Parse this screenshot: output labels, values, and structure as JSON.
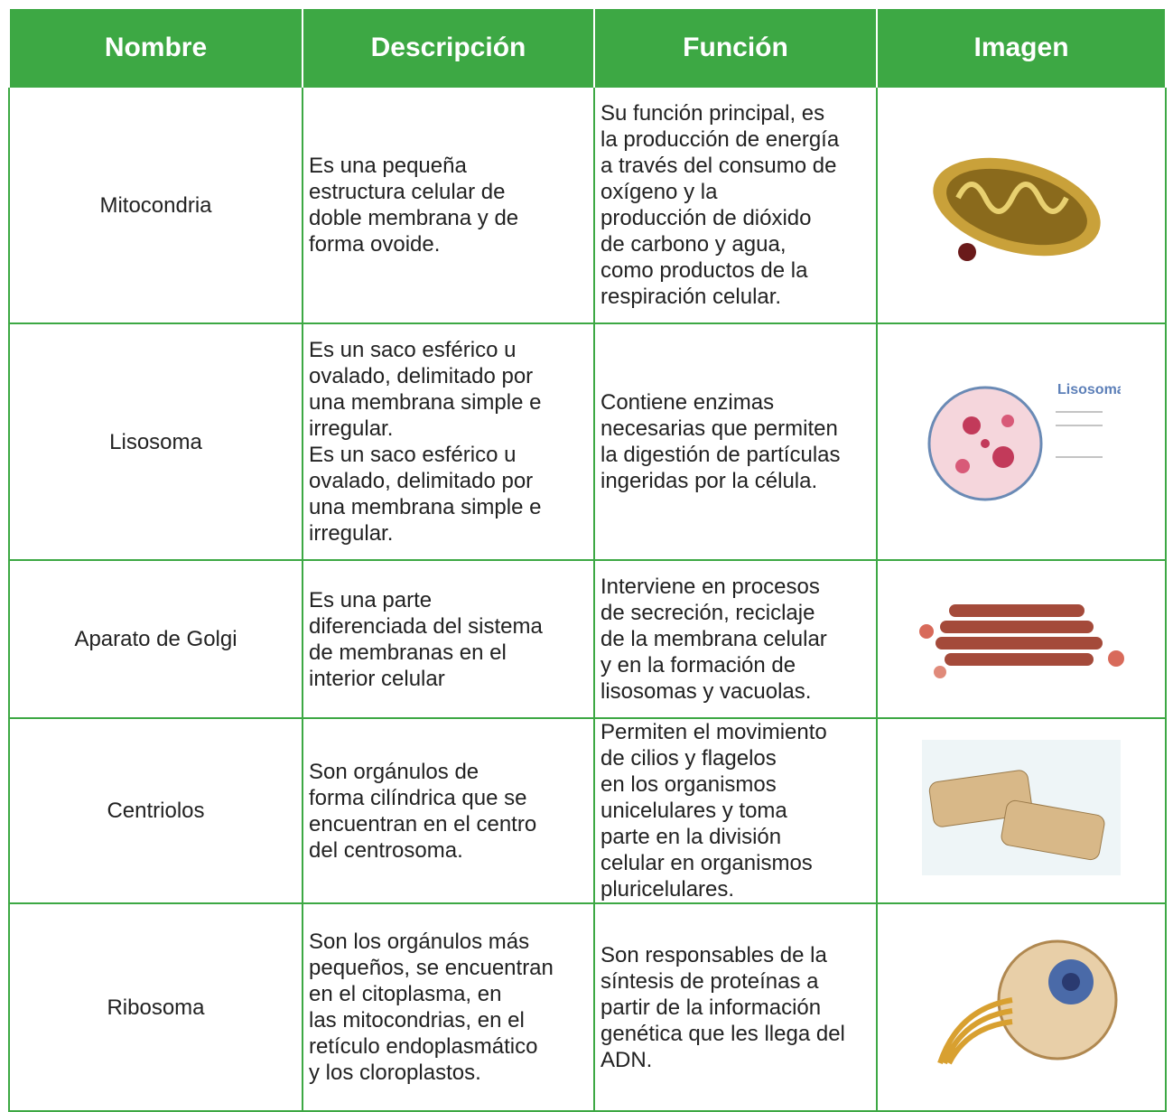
{
  "table": {
    "header": [
      "Nombre",
      "Descripción",
      "Función",
      "Imagen"
    ],
    "rows": [
      {
        "name": "Mitocondria",
        "description": [
          "Es una pequeña",
          "estructura celular de",
          "doble membrana y de",
          "forma ovoide."
        ],
        "function": [
          "Su función principal, es",
          "la producción de energía",
          "a través del consumo de",
          "oxígeno y la",
          "producción de dióxido",
          "de carbono y agua,",
          "como productos de la",
          "respiración celular."
        ]
      },
      {
        "name": "Lisosoma",
        "description": [
          "Es un saco esférico u",
          "ovalado, delimitado por",
          "una membrana simple e",
          "irregular.",
          "Es un saco esférico u",
          "ovalado, delimitado por",
          "una membrana simple e",
          "irregular."
        ],
        "function": [
          "Contiene enzimas",
          "necesarias que permiten",
          "la digestión de partículas",
          "ingeridas por la célula."
        ],
        "image_label": "Lisosoma"
      },
      {
        "name": "Aparato de Golgi",
        "description": [
          "Es una parte",
          "diferenciada del sistema",
          "de membranas en el",
          "interior celular"
        ],
        "function": [
          "Interviene en procesos",
          "de secreción, reciclaje",
          "de la membrana celular",
          "y en la formación de",
          "lisosomas y vacuolas."
        ]
      },
      {
        "name": "Centriolos",
        "description": [
          "Son orgánulos de",
          "forma cilíndrica que se",
          "encuentran en el centro",
          "del centrosoma."
        ],
        "function": [
          "Permiten el movimiento",
          "de cilios y flagelos",
          "en los organismos",
          "unicelulares y toma",
          "parte en la división",
          "celular en organismos",
          "pluricelulares."
        ]
      },
      {
        "name": "Ribosoma",
        "description": [
          "Son los orgánulos más",
          "pequeños, se encuentran",
          "en el citoplasma, en",
          "las mitocondrias, en el",
          "retículo endoplasmático",
          "y los cloroplastos."
        ],
        "function": [
          "Son responsables de la",
          "síntesis de proteínas a",
          "partir de la información",
          "genética que les llega del",
          "ADN."
        ]
      }
    ]
  }
}
